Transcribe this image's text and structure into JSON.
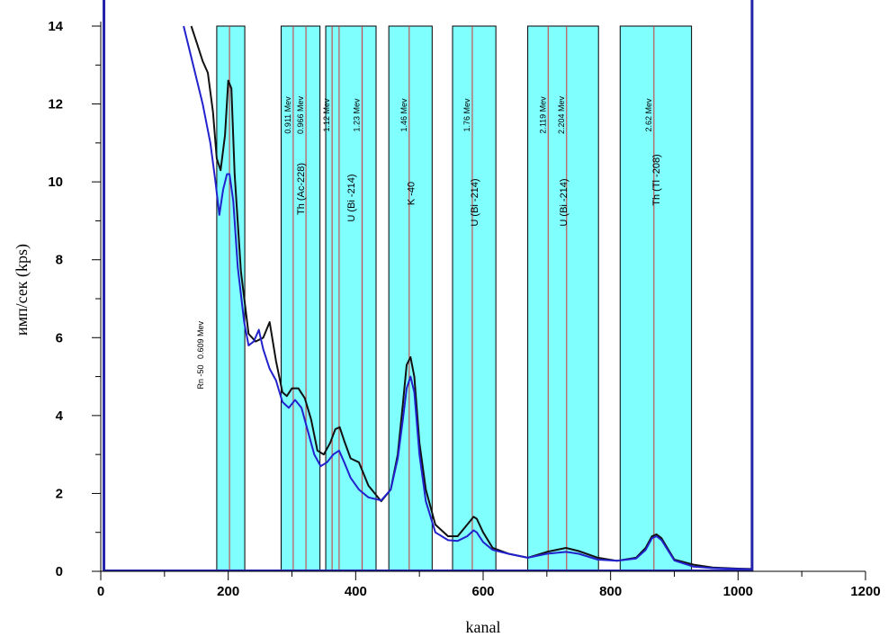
{
  "chart_data": {
    "type": "line",
    "xlabel": "kanal",
    "ylabel": "имп/сек (kps)",
    "xlim": [
      0,
      1200
    ],
    "ylim": [
      0,
      14
    ],
    "x_ticks": [
      "0",
      "200",
      "400",
      "600",
      "800",
      "1000",
      "1200"
    ],
    "y_ticks": [
      "0",
      "2",
      "4",
      "6",
      "8",
      "10",
      "12",
      "14"
    ],
    "grid": false,
    "colors": {
      "band_fill": "#80ffff",
      "marker_line": "#cc3333",
      "series_black": "#111111",
      "series_blue": "#2222cc",
      "frame_blue": "#2222aa"
    },
    "vertical_frame_lines_x": [
      5,
      1022
    ],
    "bands": [
      {
        "x0": 182,
        "x1": 226,
        "label": ""
      },
      {
        "x0": 283,
        "x1": 344,
        "label": "Th (Ac-228)"
      },
      {
        "x0": 353,
        "x1": 432,
        "label": "U (Bi -214)"
      },
      {
        "x0": 452,
        "x1": 520,
        "label": "K -40"
      },
      {
        "x0": 552,
        "x1": 620,
        "label": "U (Bi -214)"
      },
      {
        "x0": 670,
        "x1": 781,
        "label": "U (Bi -214)"
      },
      {
        "x0": 815,
        "x1": 927,
        "label": "Th (Tl -208)"
      }
    ],
    "markers": [
      {
        "x": 202,
        "label": "0.609 Mev"
      },
      {
        "x": 302,
        "label": "0.911 Mev"
      },
      {
        "x": 322,
        "label": "0.966 Mev"
      },
      {
        "x": 363,
        "label": "1.12 Mev"
      },
      {
        "x": 374,
        "label": ""
      },
      {
        "x": 410,
        "label": "1.23 Mev"
      },
      {
        "x": 484,
        "label": "1.46 Mev"
      },
      {
        "x": 583,
        "label": "1.76 Mev"
      },
      {
        "x": 702,
        "label": "2.119 Mev"
      },
      {
        "x": 731,
        "label": "2.204 Mev"
      },
      {
        "x": 868,
        "label": "2.62 Mev"
      }
    ],
    "annotation": "Rn -50",
    "series": [
      {
        "color": "#111111",
        "x": [
          142,
          150,
          160,
          168,
          176,
          182,
          188,
          195,
          200,
          205,
          210,
          220,
          232,
          243,
          255,
          265,
          275,
          285,
          292,
          300,
          310,
          320,
          330,
          340,
          350,
          360,
          368,
          375,
          382,
          392,
          405,
          420,
          440,
          455,
          466,
          474,
          480,
          486,
          492,
          500,
          510,
          525,
          545,
          560,
          575,
          585,
          590,
          600,
          615,
          640,
          670,
          700,
          730,
          750,
          780,
          810,
          840,
          855,
          865,
          872,
          880,
          900,
          930,
          960,
          1000,
          1022
        ],
        "y": [
          14.0,
          13.6,
          13.1,
          12.8,
          11.8,
          10.6,
          10.3,
          11.2,
          12.6,
          12.4,
          10.2,
          7.7,
          6.1,
          5.9,
          6.0,
          6.4,
          5.4,
          4.6,
          4.5,
          4.7,
          4.7,
          4.45,
          3.9,
          3.1,
          3.0,
          3.3,
          3.65,
          3.7,
          3.35,
          2.9,
          2.8,
          2.2,
          1.8,
          2.1,
          3.0,
          4.3,
          5.3,
          5.5,
          5.0,
          3.3,
          2.1,
          1.2,
          0.9,
          0.9,
          1.2,
          1.4,
          1.35,
          1.0,
          0.6,
          0.45,
          0.35,
          0.5,
          0.6,
          0.52,
          0.35,
          0.27,
          0.35,
          0.6,
          0.9,
          0.95,
          0.85,
          0.3,
          0.17,
          0.1,
          0.07,
          0.06
        ]
      },
      {
        "color": "#2222cc",
        "x": [
          130,
          145,
          160,
          172,
          180,
          186,
          192,
          198,
          202,
          208,
          215,
          225,
          232,
          240,
          248,
          255,
          265,
          275,
          285,
          295,
          305,
          315,
          325,
          335,
          345,
          355,
          365,
          374,
          382,
          392,
          405,
          420,
          440,
          455,
          466,
          474,
          480,
          486,
          492,
          500,
          510,
          525,
          545,
          560,
          575,
          585,
          590,
          600,
          615,
          640,
          670,
          700,
          730,
          750,
          780,
          810,
          840,
          855,
          865,
          872,
          880,
          900,
          930,
          960,
          1000,
          1022
        ],
        "y": [
          14.0,
          13.0,
          12.0,
          11.0,
          10.0,
          9.15,
          9.8,
          10.2,
          10.2,
          9.5,
          7.8,
          6.4,
          5.8,
          5.9,
          6.2,
          5.7,
          5.2,
          4.9,
          4.35,
          4.2,
          4.4,
          4.2,
          3.6,
          3.0,
          2.7,
          2.8,
          3.0,
          3.1,
          2.8,
          2.4,
          2.1,
          1.9,
          1.82,
          2.1,
          2.9,
          3.9,
          4.7,
          5.0,
          4.6,
          3.0,
          1.8,
          1.0,
          0.8,
          0.78,
          0.9,
          1.05,
          1.0,
          0.75,
          0.55,
          0.45,
          0.35,
          0.45,
          0.5,
          0.45,
          0.3,
          0.27,
          0.33,
          0.55,
          0.85,
          0.9,
          0.8,
          0.28,
          0.12,
          0.08,
          0.06,
          0.05
        ]
      }
    ]
  }
}
